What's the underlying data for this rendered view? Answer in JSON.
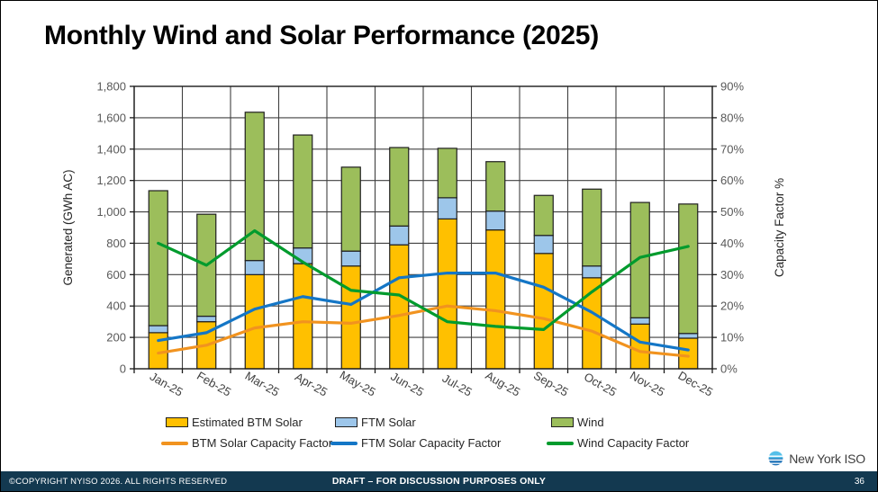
{
  "slide": {
    "title": "Monthly Wind and Solar Performance (2025)",
    "logo_text": "New York ISO",
    "footer": {
      "copyright": "©COPYRIGHT NYISO 2026. ALL RIGHTS RESERVED",
      "draft_notice": "DRAFT – FOR DISCUSSION PURPOSES ONLY",
      "page_number": "36"
    }
  },
  "chart_data": {
    "type": "combo: stacked bar (left axis) + line (right axis)",
    "title": "Monthly Wind and Solar Performance (2025)",
    "categories": [
      "Jan-25",
      "Feb-25",
      "Mar-25",
      "Apr-25",
      "May-25",
      "Jun-25",
      "Jul-25",
      "Aug-25",
      "Sep-25",
      "Oct-25",
      "Nov-25",
      "Dec-25"
    ],
    "left_axis": {
      "label": "Generated (GWh AC)",
      "min": 0,
      "max": 1800,
      "step": 200
    },
    "right_axis": {
      "label": "Capacity Factor %",
      "min": 0,
      "max": 90,
      "step": 10,
      "suffix": "%"
    },
    "grid": true,
    "legend_position": "bottom",
    "bar_series": [
      {
        "name": "Estimated BTM Solar",
        "color": "#FFC000",
        "axis": "left",
        "values": [
          230,
          300,
          600,
          670,
          655,
          790,
          955,
          885,
          735,
          580,
          285,
          195
        ]
      },
      {
        "name": "FTM Solar",
        "color": "#9DC6EA",
        "axis": "left",
        "values": [
          45,
          35,
          90,
          100,
          95,
          120,
          135,
          120,
          115,
          75,
          40,
          30
        ]
      },
      {
        "name": "Wind",
        "color": "#9CBE5B",
        "axis": "left",
        "values": [
          860,
          650,
          945,
          720,
          535,
          500,
          315,
          315,
          255,
          490,
          735,
          825
        ]
      }
    ],
    "line_series": [
      {
        "name": "BTM Solar Capacity Factor",
        "color": "#F1931F",
        "axis": "right",
        "values": [
          5,
          7.5,
          13,
          15,
          14.5,
          17,
          20,
          18.5,
          16,
          12,
          5.5,
          4
        ]
      },
      {
        "name": "FTM Solar Capacity Factor",
        "color": "#1476C6",
        "axis": "right",
        "values": [
          9,
          11.5,
          19,
          23,
          20.5,
          29,
          30.5,
          30.5,
          26,
          18,
          8.5,
          6
        ]
      },
      {
        "name": "Wind Capacity Factor",
        "color": "#009B2D",
        "axis": "right",
        "values": [
          40,
          33,
          44,
          34,
          25,
          23.5,
          15,
          13.5,
          12.5,
          24.5,
          35.5,
          39
        ]
      }
    ]
  }
}
